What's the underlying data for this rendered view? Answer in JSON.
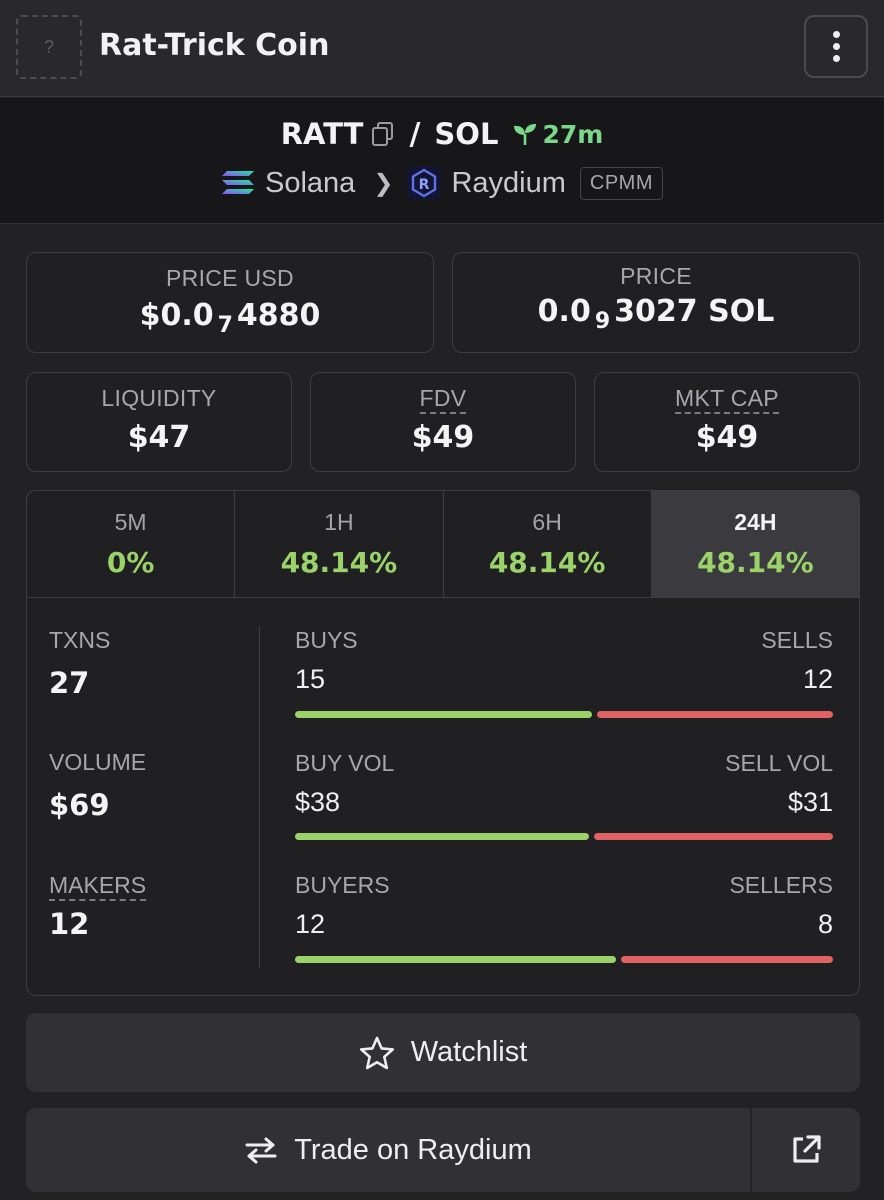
{
  "header": {
    "logo_placeholder": "?",
    "title": "Rat-Trick Coin",
    "menu_icon": "vertical-dots-icon"
  },
  "pair": {
    "base": "RATT",
    "quote": "SOL",
    "age": "27m",
    "chain": "Solana",
    "dex": "Raydium",
    "pool_type": "CPMM"
  },
  "prices": {
    "usd_label": "PRICE USD",
    "usd_prefix": "$0.0",
    "usd_zeros": "7",
    "usd_digits": "4880",
    "native_label": "PRICE",
    "native_prefix": "0.0",
    "native_zeros": "9",
    "native_digits": "3027 SOL"
  },
  "metrics": {
    "liquidity_label": "LIQUIDITY",
    "liquidity": "$47",
    "fdv_label": "FDV",
    "fdv": "$49",
    "mktcap_label": "MKT CAP",
    "mktcap": "$49"
  },
  "tabs": [
    {
      "label": "5M",
      "value": "0%"
    },
    {
      "label": "1H",
      "value": "48.14%"
    },
    {
      "label": "6H",
      "value": "48.14%"
    },
    {
      "label": "24H",
      "value": "48.14%"
    }
  ],
  "stats": {
    "txns_label": "TXNS",
    "txns": "27",
    "volume_label": "VOLUME",
    "volume": "$69",
    "makers_label": "MAKERS",
    "makers": "12",
    "buys_label": "BUYS",
    "buys": "15",
    "sells_label": "SELLS",
    "sells": "12",
    "buyvol_label": "BUY VOL",
    "buyvol": "$38",
    "sellvol_label": "SELL VOL",
    "sellvol": "$31",
    "buyers_label": "BUYERS",
    "buyers": "12",
    "sellers_label": "SELLERS",
    "sellers": "8",
    "buys_ratio": 0.556,
    "buyvol_ratio": 0.551,
    "buyers_ratio": 0.6
  },
  "actions": {
    "watchlist": "Watchlist",
    "trade": "Trade on Raydium"
  },
  "colors": {
    "positive": "#9bd36a",
    "negative": "#e06262",
    "age_green": "#7bd88b"
  }
}
